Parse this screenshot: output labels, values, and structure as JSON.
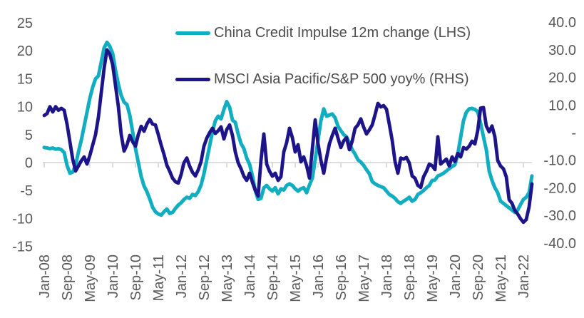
{
  "chart_data": {
    "type": "line",
    "title": "",
    "n_points": 172,
    "x_start_label": "Jan-08",
    "x_tick_step_months": 8,
    "x_tick_labels": [
      "Jan-08",
      "Sep-08",
      "May-09",
      "Jan-10",
      "Sep-10",
      "May-11",
      "Jan-12",
      "Sep-12",
      "May-13",
      "Jan-14",
      "Sep-14",
      "May-15",
      "Jan-16",
      "Sep-16",
      "May-17",
      "Jan-18",
      "Sep-18",
      "May-19",
      "Jan-20",
      "Sep-20",
      "May-21",
      "Jan-22"
    ],
    "left_axis": {
      "tick_labels": [
        "25",
        "20",
        "15",
        "10",
        "5",
        "0",
        "-5",
        "-10",
        "-15"
      ],
      "tick_values": [
        25,
        20,
        15,
        10,
        5,
        0,
        -5,
        -10,
        -15
      ],
      "min": -15,
      "max": 25
    },
    "right_axis": {
      "tick_labels": [
        "40.0",
        "30.0",
        "20.0",
        "10.0",
        "-",
        "-10.0",
        "-20.0",
        "-30.0",
        "-40.0"
      ],
      "tick_values": [
        40,
        30,
        20,
        10,
        0,
        -10,
        -20,
        -30,
        -40
      ],
      "min": -40,
      "max": 40
    },
    "grid": "zero-line-only",
    "legend_position": "top-center",
    "series": [
      {
        "name": "China Credit Impulse 12m change (LHS)",
        "axis": "left",
        "color": "#10AEC0",
        "values": [
          2.7,
          2.6,
          2.5,
          2.6,
          2.4,
          2.5,
          2.3,
          1.8,
          -0.5,
          -1.9,
          -1.7,
          -0.5,
          1.9,
          4.0,
          6.5,
          9.0,
          11.5,
          13.5,
          15.0,
          15.5,
          18.0,
          20.5,
          21.5,
          20.8,
          19.5,
          16.5,
          14.0,
          12.0,
          10.8,
          10.4,
          8.5,
          5.5,
          2.5,
          0.0,
          -2.5,
          -4.2,
          -5.2,
          -6.5,
          -8.0,
          -8.8,
          -9.2,
          -9.4,
          -8.8,
          -8.3,
          -9.1,
          -8.9,
          -8.2,
          -7.6,
          -7.2,
          -6.6,
          -6.2,
          -6.4,
          -5.7,
          -5.9,
          -5.2,
          -4.0,
          -2.0,
          0.5,
          3.0,
          5.5,
          7.5,
          8.3,
          7.8,
          9.5,
          10.9,
          9.9,
          7.6,
          7.2,
          5.1,
          3.4,
          2.5,
          0.8,
          -0.3,
          -2.4,
          -5.0,
          -6.6,
          -6.4,
          -4.5,
          -4.1,
          -4.7,
          -5.1,
          -4.5,
          -5.6,
          -4.7,
          -4.9,
          -4.1,
          -3.8,
          -4.1,
          -4.7,
          -5.1,
          -4.7,
          -4.5,
          -5.4,
          -4.0,
          -2.8,
          0.5,
          4.0,
          7.5,
          9.6,
          8.3,
          8.5,
          8.7,
          8.0,
          6.5,
          5.7,
          5.0,
          4.6,
          3.5,
          2.3,
          1.5,
          0.5,
          0.1,
          -0.5,
          -1.3,
          -2.0,
          -3.4,
          -3.8,
          -4.1,
          -4.3,
          -4.5,
          -5.1,
          -5.7,
          -6.0,
          -6.4,
          -7.0,
          -7.3,
          -6.9,
          -6.6,
          -6.2,
          -6.9,
          -6.6,
          -5.7,
          -5.4,
          -5.0,
          -4.5,
          -4.1,
          -3.2,
          -3.1,
          -2.4,
          -2.2,
          -1.9,
          -1.5,
          -1.1,
          -0.7,
          -0.4,
          1.5,
          4.5,
          7.5,
          9.0,
          9.6,
          9.7,
          9.5,
          9.1,
          7.0,
          4.6,
          2.3,
          -1.5,
          -3.2,
          -4.5,
          -5.4,
          -6.9,
          -7.3,
          -7.7,
          -8.1,
          -8.5,
          -8.9,
          -8.5,
          -7.5,
          -6.6,
          -6.2,
          -5.4,
          -2.4
        ]
      },
      {
        "name": "MSCI Asia Pacific/S&P 500 yoy% (RHS)",
        "axis": "right",
        "color": "#1D1489",
        "values": [
          6.2,
          6.9,
          9.4,
          7.5,
          9.4,
          8.1,
          8.8,
          8.1,
          3.1,
          -3.3,
          -9.6,
          -13.9,
          -12.1,
          -10.2,
          -8.8,
          -11.4,
          -8.3,
          -4.5,
          -0.7,
          5.6,
          14.5,
          23.3,
          30.0,
          28.4,
          24.6,
          17.0,
          9.4,
          -0.7,
          -6.7,
          -4.5,
          -1.0,
          -3.3,
          -4.9,
          -0.7,
          2.3,
          0.5,
          3.1,
          4.8,
          3.1,
          2.8,
          -0.7,
          -4.5,
          -7.9,
          -11.8,
          -14.0,
          -16.5,
          -17.8,
          -18.3,
          -15.2,
          -10.9,
          -9.2,
          -12.2,
          -14.4,
          -15.7,
          -13.5,
          -10.5,
          -4.9,
          -2.0,
          0.0,
          1.6,
          -0.3,
          0.7,
          2.1,
          -2.3,
          1.1,
          2.8,
          -1.0,
          -7.0,
          -10.9,
          -13.1,
          -15.8,
          -17.3,
          -14.7,
          -18.0,
          -20.9,
          -23.0,
          -10.0,
          -0.5,
          -11.4,
          -14.0,
          -15.8,
          -14.7,
          -17.3,
          -16.0,
          -7.0,
          -3.6,
          1.6,
          -1.8,
          -7.0,
          -4.4,
          -10.6,
          -8.8,
          -12.0,
          -16.5,
          -6.0,
          4.6,
          -4.0,
          -10.0,
          -14.7,
          -9.1,
          -4.0,
          -1.0,
          1.6,
          -2.0,
          -5.4,
          -3.0,
          -1.8,
          -6.2,
          -3.0,
          1.6,
          2.8,
          5.0,
          2.0,
          -0.5,
          1.0,
          2.8,
          6.5,
          10.6,
          9.3,
          9.8,
          8.5,
          3.0,
          -2.8,
          -10.5,
          -14.7,
          -9.2,
          -9.6,
          -9.0,
          -11.0,
          -15.7,
          -16.5,
          -19.1,
          -19.9,
          -16.0,
          -14.0,
          -11.4,
          -12.0,
          -13.4,
          -1.5,
          -11.4,
          -10.5,
          -9.6,
          -12.1,
          -8.8,
          -10.5,
          -7.5,
          -8.8,
          -5.4,
          -6.0,
          -4.9,
          -3.1,
          -4.1,
          0.8,
          8.9,
          9.1,
          2.4,
          0.3,
          2.4,
          -1.5,
          -10.1,
          -12.1,
          -13.1,
          -16.0,
          -24.3,
          -25.6,
          -28.2,
          -29.5,
          -31.2,
          -32.5,
          -31.5,
          -26.9,
          -18.6
        ]
      }
    ]
  },
  "legend": {
    "items": [
      {
        "label": "China Credit Impulse 12m change (LHS)",
        "color": "#10AEC0"
      },
      {
        "label": "MSCI Asia Pacific/S&P 500 yoy% (RHS)",
        "color": "#1D1489"
      }
    ]
  },
  "colors": {
    "background": "#FFFFFF",
    "teal_series": "#10AEC0",
    "navy_series": "#1D1489",
    "gridline": "#D2D2D2",
    "axis_text": "#595959",
    "legend_text": "#4C4C4C"
  }
}
